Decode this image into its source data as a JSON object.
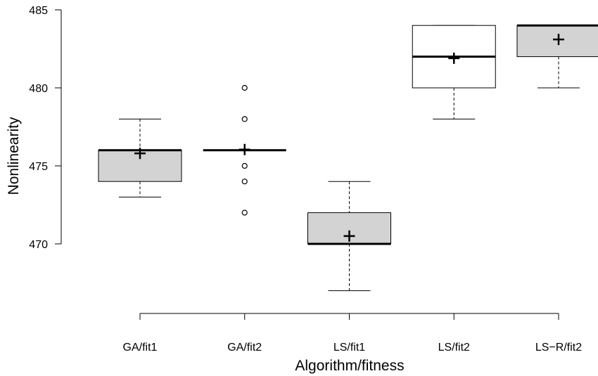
{
  "chart_data": {
    "type": "boxplot",
    "xlabel": "Algorithm/fitness",
    "ylabel": "Nonlinearity",
    "ylim": [
      465,
      485
    ],
    "yticks": [
      470,
      475,
      480,
      485
    ],
    "grid": false,
    "categories": [
      "GA/fit1",
      "GA/fit2",
      "LS/fit1",
      "LS/fit2",
      "LS−R/fit2"
    ],
    "boxes": [
      {
        "label": "GA/fit1",
        "whisker_low": 473,
        "q1": 474,
        "median": 476,
        "q3": 476,
        "whisker_high": 478,
        "mean": 475.8,
        "outliers": [],
        "fill": "#d3d3d3"
      },
      {
        "label": "GA/fit2",
        "whisker_low": 476,
        "q1": 476,
        "median": 476,
        "q3": 476,
        "whisker_high": 476,
        "mean": 476.05,
        "outliers": [
          472,
          474,
          475,
          478,
          480
        ],
        "fill": "#d3d3d3"
      },
      {
        "label": "LS/fit1",
        "whisker_low": 467,
        "q1": 470,
        "median": 470,
        "q3": 472,
        "whisker_high": 474,
        "mean": 470.5,
        "outliers": [],
        "fill": "#d3d3d3"
      },
      {
        "label": "LS/fit2",
        "whisker_low": 478,
        "q1": 480,
        "median": 482,
        "q3": 484,
        "whisker_high": 484,
        "mean": 481.9,
        "outliers": [],
        "fill": "#ffffff"
      },
      {
        "label": "LS−R/fit2",
        "whisker_low": 480,
        "q1": 482,
        "median": 484,
        "q3": 484,
        "whisker_high": 484,
        "mean": 483.1,
        "outliers": [],
        "fill": "#d3d3d3"
      }
    ]
  }
}
